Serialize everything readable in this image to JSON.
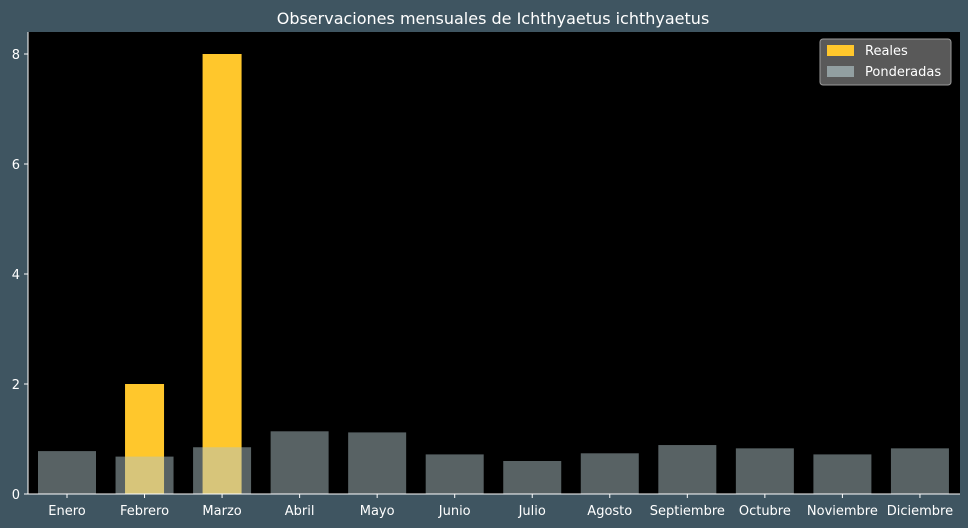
{
  "chart_data": {
    "type": "bar",
    "title": "Observaciones mensuales de Ichthyaetus ichthyaetus",
    "xlabel": "",
    "ylabel": "",
    "categories": [
      "Enero",
      "Febrero",
      "Marzo",
      "Abril",
      "Mayo",
      "Junio",
      "Julio",
      "Agosto",
      "Septiembre",
      "Octubre",
      "Noviembre",
      "Diciembre"
    ],
    "series": [
      {
        "name": "Reales",
        "color": "#ffc72c",
        "values": [
          0,
          2,
          8,
          0,
          0,
          0,
          0,
          0,
          0,
          0,
          0,
          0
        ]
      },
      {
        "name": "Ponderadas",
        "color": "#b0c4c8",
        "values": [
          0.78,
          0.68,
          0.85,
          1.14,
          1.12,
          0.72,
          0.6,
          0.74,
          0.89,
          0.83,
          0.72,
          0.83
        ]
      }
    ],
    "ylim": [
      0,
      8.4
    ],
    "yticks": [
      0,
      2,
      4,
      6,
      8
    ],
    "grid": false,
    "legend_position": "top-right",
    "background_color": "#3f5561",
    "plot_background_color": "#000000"
  }
}
